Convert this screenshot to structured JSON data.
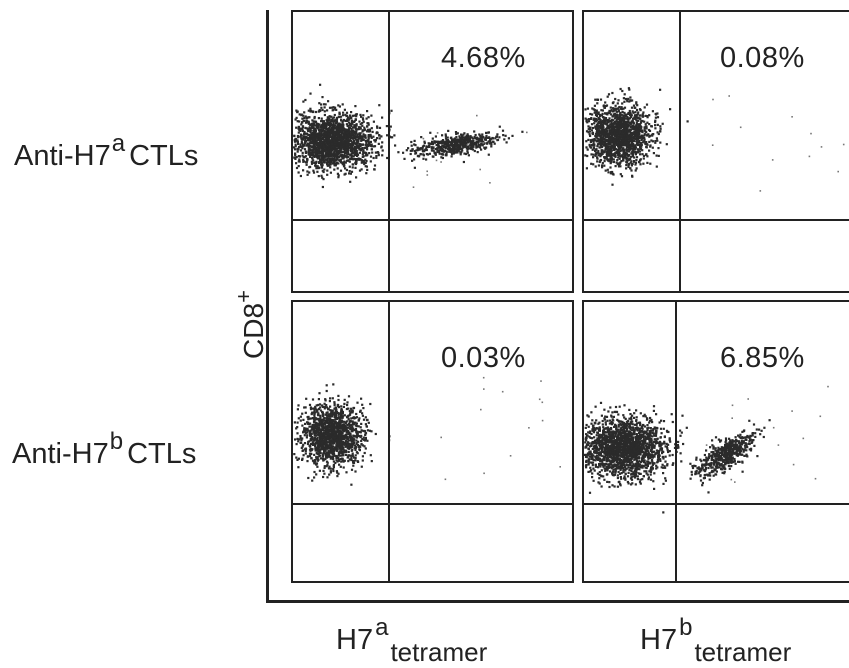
{
  "chart_data": {
    "type": "scatter",
    "description_type": "flow-cytometry-dot-plots",
    "ylabel_main": "CD8",
    "ylabel_sup": "+",
    "rows": [
      {
        "label_main": "Anti-H7",
        "label_sup": "a",
        "label_tail": "CTLs"
      },
      {
        "label_main": "Anti-H7",
        "label_sup": "b",
        "label_tail": "CTLs"
      }
    ],
    "columns": [
      {
        "label_main": "H7",
        "label_sup": "a",
        "label_sub": "tetramer"
      },
      {
        "label_main": "H7",
        "label_sup": "b",
        "label_sub": "tetramer"
      }
    ],
    "panels": [
      {
        "row": 0,
        "col": 0,
        "percent_label": "4.68%",
        "tetramer_positive_percent": 4.68
      },
      {
        "row": 0,
        "col": 1,
        "percent_label": "0.08%",
        "tetramer_positive_percent": 0.08
      },
      {
        "row": 1,
        "col": 0,
        "percent_label": "0.03%",
        "tetramer_positive_percent": 0.03
      },
      {
        "row": 1,
        "col": 1,
        "percent_label": "6.85%",
        "tetramer_positive_percent": 6.85
      }
    ],
    "dot_color": "#2b2b2b"
  }
}
